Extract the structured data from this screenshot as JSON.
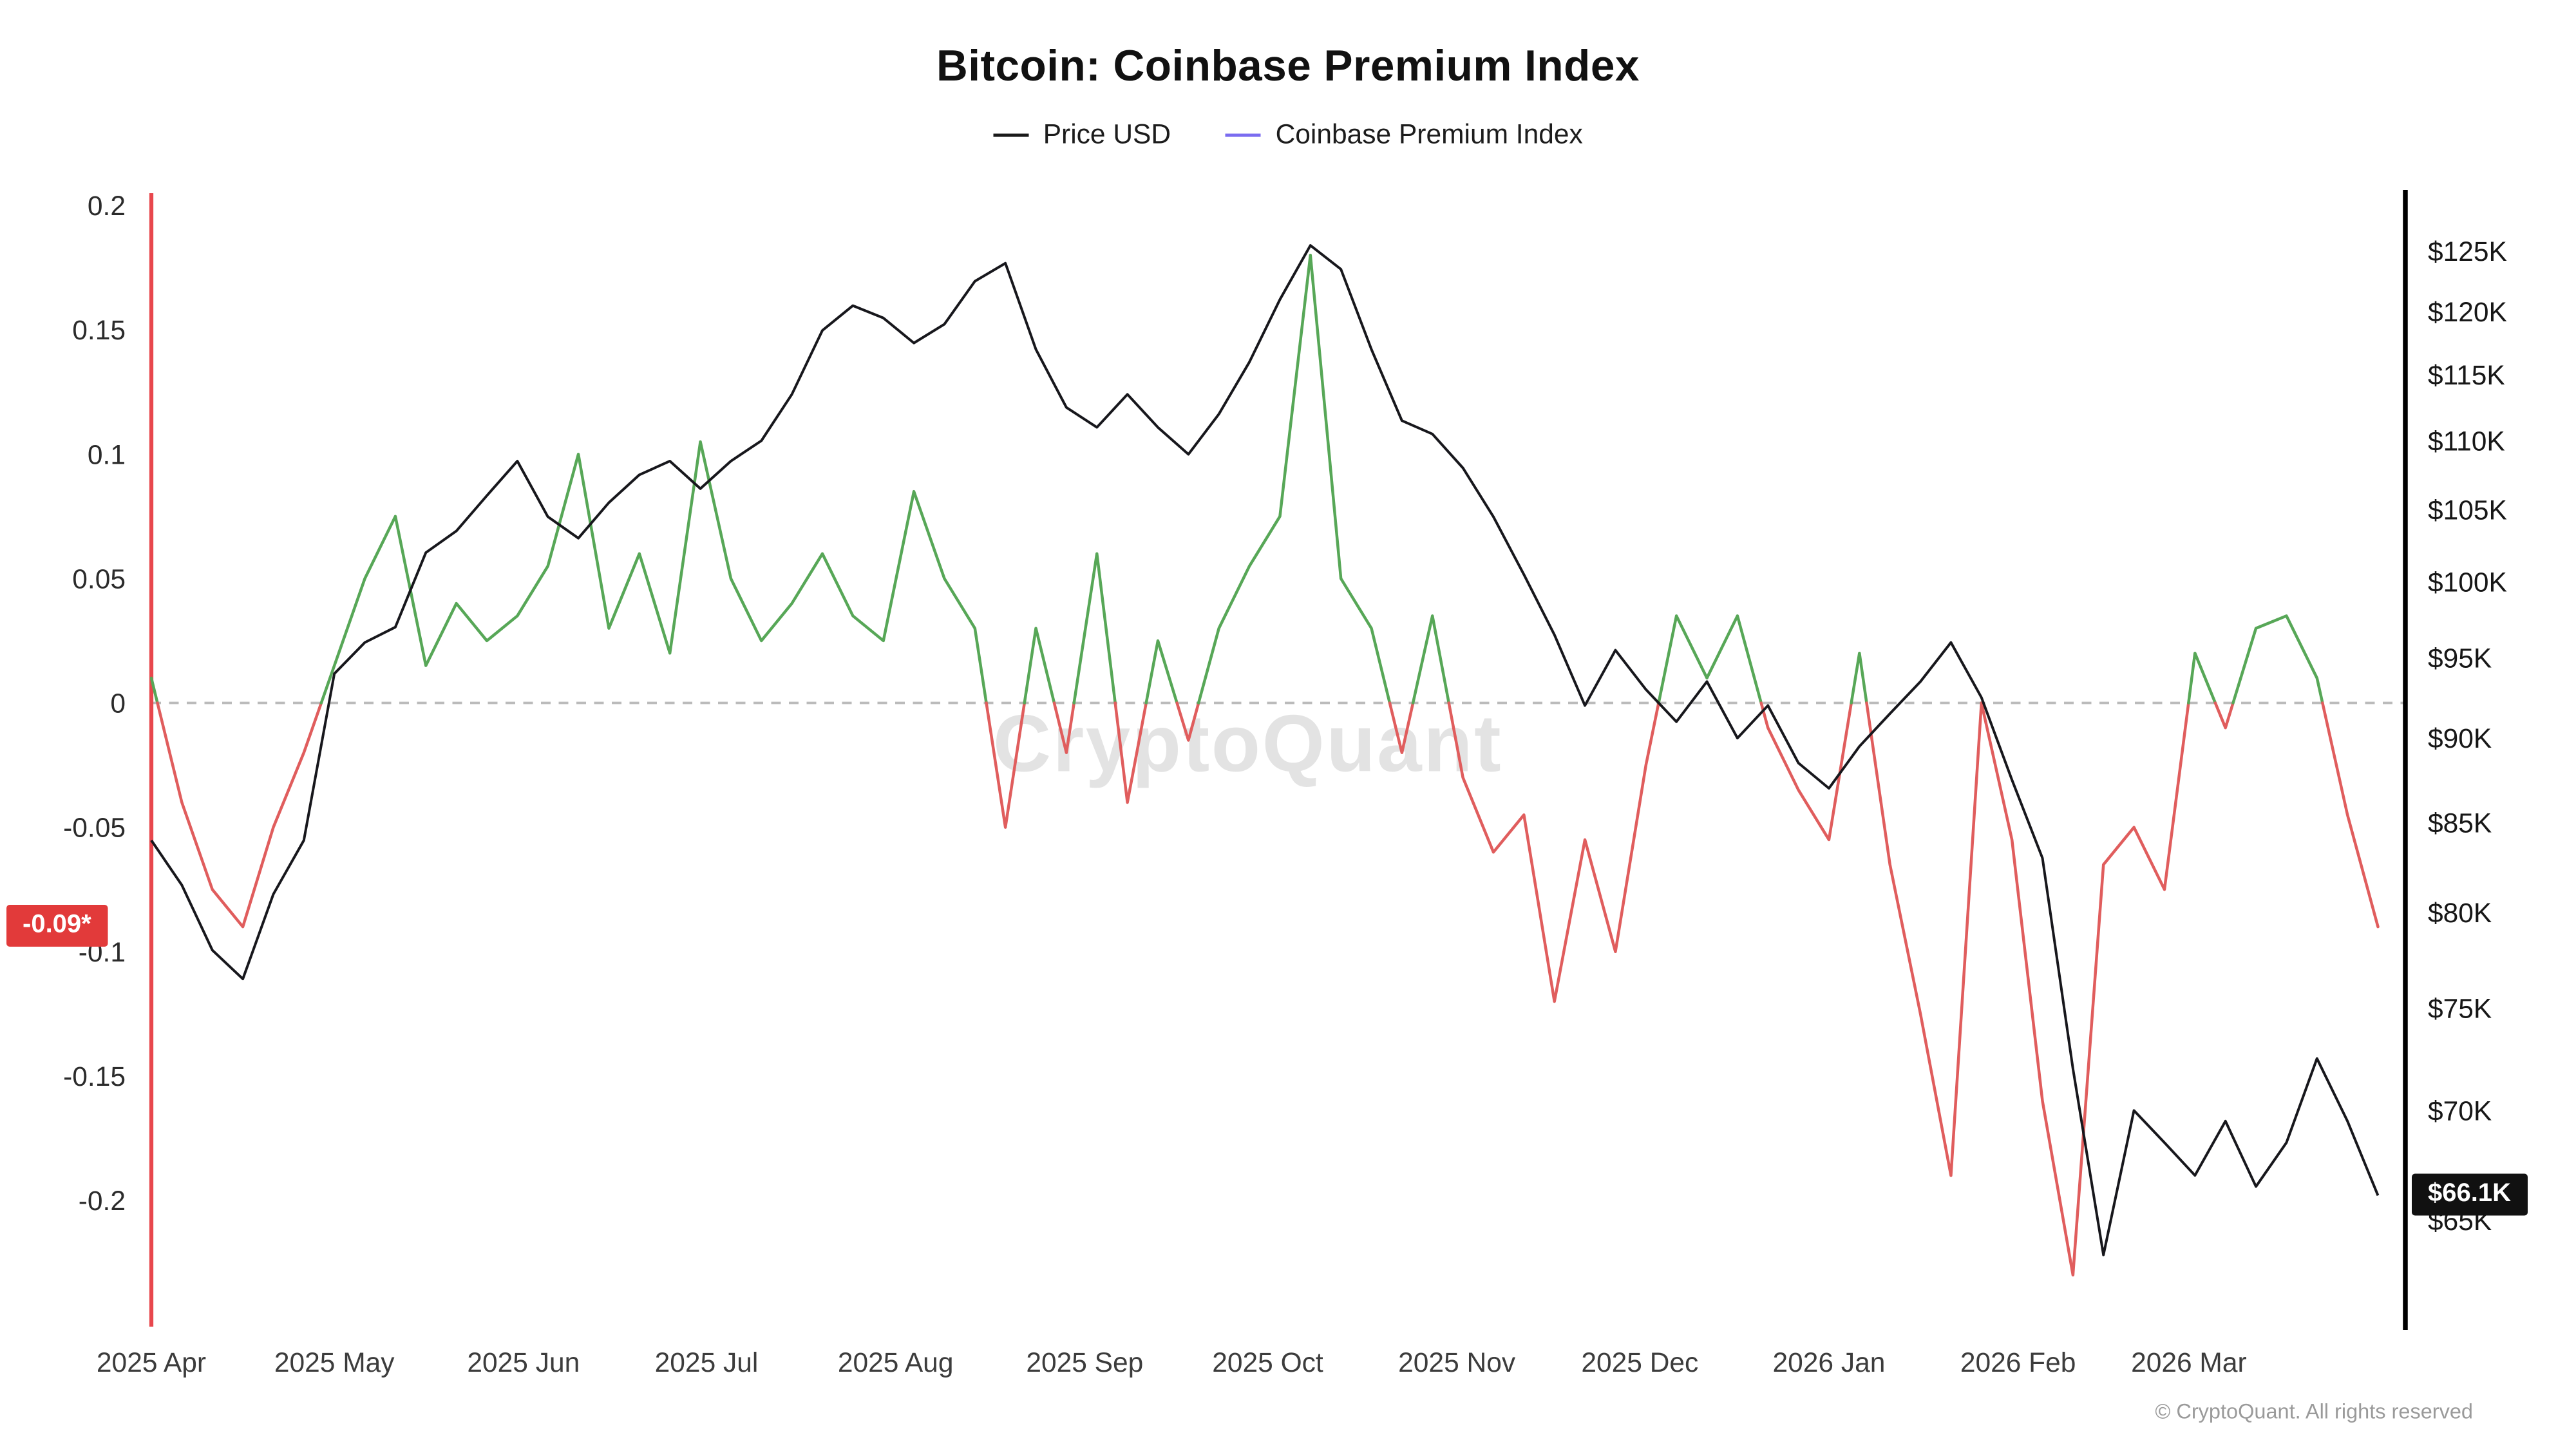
{
  "page": {
    "title": "Bitcoin: Coinbase Premium Index",
    "watermark": "CryptoQuant",
    "footer": "© CryptoQuant. All rights reserved"
  },
  "legend": [
    {
      "label": "Price USD",
      "color": "#1a1a1a"
    },
    {
      "label": "Coinbase Premium Index",
      "color": "#7b6cf0"
    }
  ],
  "badges": {
    "premium_current": {
      "text": "-0.09*",
      "value": -0.09,
      "bg": "#e23a3a",
      "fg": "#ffffff"
    },
    "price_current": {
      "text": "$66.1K",
      "value": 66.1,
      "bg": "#111111",
      "fg": "#ffffff"
    }
  },
  "chart_data": {
    "type": "line",
    "title": "Bitcoin: Coinbase Premium Index",
    "x_unit": "days since 2025-04-01",
    "x_ticks": [
      {
        "label": "2025 Apr",
        "day": 0
      },
      {
        "label": "2025 May",
        "day": 30
      },
      {
        "label": "2025 Jun",
        "day": 61
      },
      {
        "label": "2025 Jul",
        "day": 91
      },
      {
        "label": "2025 Aug",
        "day": 122
      },
      {
        "label": "2025 Sep",
        "day": 153
      },
      {
        "label": "2025 Oct",
        "day": 183
      },
      {
        "label": "2025 Nov",
        "day": 214
      },
      {
        "label": "2025 Dec",
        "day": 244
      },
      {
        "label": "2026 Jan",
        "day": 275
      },
      {
        "label": "2026 Feb",
        "day": 306
      },
      {
        "label": "2026 Mar",
        "day": 334
      }
    ],
    "left_axis": {
      "title": "Coinbase Premium Index",
      "range": [
        -0.25,
        0.2
      ],
      "zero_line_dashed": true,
      "ticks": [
        {
          "label": "0.2",
          "value": 0.2
        },
        {
          "label": "0.15",
          "value": 0.15
        },
        {
          "label": "0.1",
          "value": 0.1
        },
        {
          "label": "0.05",
          "value": 0.05
        },
        {
          "label": "0",
          "value": 0
        },
        {
          "label": "-0.05",
          "value": -0.05
        },
        {
          "label": "-0.1",
          "value": -0.1
        },
        {
          "label": "-0.15",
          "value": -0.15
        },
        {
          "label": "-0.2",
          "value": -0.2
        }
      ]
    },
    "right_axis": {
      "title": "Price USD",
      "scale": "log",
      "range_k": [
        60.5,
        130
      ],
      "ticks": [
        {
          "label": "$125K",
          "value": 125
        },
        {
          "label": "$120K",
          "value": 120
        },
        {
          "label": "$115K",
          "value": 115
        },
        {
          "label": "$110K",
          "value": 110
        },
        {
          "label": "$105K",
          "value": 105
        },
        {
          "label": "$100K",
          "value": 100
        },
        {
          "label": "$95K",
          "value": 95
        },
        {
          "label": "$90K",
          "value": 90
        },
        {
          "label": "$85K",
          "value": 85
        },
        {
          "label": "$80K",
          "value": 80
        },
        {
          "label": "$75K",
          "value": 75
        },
        {
          "label": "$70K",
          "value": 70
        },
        {
          "label": "$65K",
          "value": 65
        }
      ]
    },
    "series": [
      {
        "name": "Price USD",
        "axis": "right",
        "color": "#17171c",
        "points": [
          [
            0,
            84
          ],
          [
            5,
            81.5
          ],
          [
            10,
            78
          ],
          [
            15,
            76.5
          ],
          [
            20,
            81
          ],
          [
            25,
            84
          ],
          [
            30,
            94
          ],
          [
            35,
            96
          ],
          [
            40,
            97
          ],
          [
            45,
            102
          ],
          [
            50,
            103.5
          ],
          [
            55,
            106
          ],
          [
            60,
            108.5
          ],
          [
            65,
            104.5
          ],
          [
            70,
            103
          ],
          [
            75,
            105.5
          ],
          [
            80,
            107.5
          ],
          [
            85,
            108.5
          ],
          [
            90,
            106.5
          ],
          [
            95,
            108.5
          ],
          [
            100,
            110
          ],
          [
            105,
            113.5
          ],
          [
            110,
            118.5
          ],
          [
            115,
            120.5
          ],
          [
            120,
            119.5
          ],
          [
            125,
            117.5
          ],
          [
            130,
            119
          ],
          [
            135,
            122.5
          ],
          [
            140,
            124
          ],
          [
            145,
            117
          ],
          [
            150,
            112.5
          ],
          [
            155,
            111
          ],
          [
            160,
            113.5
          ],
          [
            165,
            111
          ],
          [
            170,
            109
          ],
          [
            175,
            112
          ],
          [
            180,
            116
          ],
          [
            185,
            121
          ],
          [
            190,
            125.5
          ],
          [
            195,
            123.5
          ],
          [
            200,
            117
          ],
          [
            205,
            111.5
          ],
          [
            210,
            110.5
          ],
          [
            215,
            108
          ],
          [
            220,
            104.5
          ],
          [
            225,
            100.5
          ],
          [
            230,
            96.5
          ],
          [
            235,
            92
          ],
          [
            240,
            95.5
          ],
          [
            245,
            93
          ],
          [
            250,
            91
          ],
          [
            255,
            93.5
          ],
          [
            260,
            90
          ],
          [
            265,
            92
          ],
          [
            270,
            88.5
          ],
          [
            275,
            87
          ],
          [
            280,
            89.5
          ],
          [
            285,
            91.5
          ],
          [
            290,
            93.5
          ],
          [
            295,
            96
          ],
          [
            300,
            92.5
          ],
          [
            305,
            87.5
          ],
          [
            310,
            83
          ],
          [
            315,
            72
          ],
          [
            320,
            63.5
          ],
          [
            325,
            70
          ],
          [
            330,
            68.5
          ],
          [
            335,
            67
          ],
          [
            340,
            69.5
          ],
          [
            345,
            66.5
          ],
          [
            350,
            68.5
          ],
          [
            355,
            72.5
          ],
          [
            360,
            69.5
          ],
          [
            365,
            66.1
          ]
        ]
      },
      {
        "name": "Coinbase Premium Index",
        "axis": "left",
        "color_positive": "#57a757",
        "color_negative": "#e05d5d",
        "points": [
          [
            0,
            0.01
          ],
          [
            5,
            -0.04
          ],
          [
            10,
            -0.075
          ],
          [
            15,
            -0.09
          ],
          [
            20,
            -0.05
          ],
          [
            25,
            -0.02
          ],
          [
            30,
            0.015
          ],
          [
            35,
            0.05
          ],
          [
            40,
            0.075
          ],
          [
            45,
            0.015
          ],
          [
            50,
            0.04
          ],
          [
            55,
            0.025
          ],
          [
            60,
            0.035
          ],
          [
            65,
            0.055
          ],
          [
            70,
            0.1
          ],
          [
            75,
            0.03
          ],
          [
            80,
            0.06
          ],
          [
            85,
            0.02
          ],
          [
            90,
            0.105
          ],
          [
            95,
            0.05
          ],
          [
            100,
            0.025
          ],
          [
            105,
            0.04
          ],
          [
            110,
            0.06
          ],
          [
            115,
            0.035
          ],
          [
            120,
            0.025
          ],
          [
            125,
            0.085
          ],
          [
            130,
            0.05
          ],
          [
            135,
            0.03
          ],
          [
            140,
            -0.05
          ],
          [
            145,
            0.03
          ],
          [
            150,
            -0.02
          ],
          [
            155,
            0.06
          ],
          [
            160,
            -0.04
          ],
          [
            165,
            0.025
          ],
          [
            170,
            -0.015
          ],
          [
            175,
            0.03
          ],
          [
            180,
            0.055
          ],
          [
            185,
            0.075
          ],
          [
            190,
            0.18
          ],
          [
            195,
            0.05
          ],
          [
            200,
            0.03
          ],
          [
            205,
            -0.02
          ],
          [
            210,
            0.035
          ],
          [
            215,
            -0.03
          ],
          [
            220,
            -0.06
          ],
          [
            225,
            -0.045
          ],
          [
            230,
            -0.12
          ],
          [
            235,
            -0.055
          ],
          [
            240,
            -0.1
          ],
          [
            245,
            -0.025
          ],
          [
            250,
            0.035
          ],
          [
            255,
            0.01
          ],
          [
            260,
            0.035
          ],
          [
            265,
            -0.01
          ],
          [
            270,
            -0.035
          ],
          [
            275,
            -0.055
          ],
          [
            280,
            0.02
          ],
          [
            285,
            -0.065
          ],
          [
            290,
            -0.125
          ],
          [
            295,
            -0.19
          ],
          [
            300,
            0
          ],
          [
            305,
            -0.055
          ],
          [
            310,
            -0.16
          ],
          [
            315,
            -0.23
          ],
          [
            320,
            -0.065
          ],
          [
            325,
            -0.05
          ],
          [
            330,
            -0.075
          ],
          [
            335,
            0.02
          ],
          [
            340,
            -0.01
          ],
          [
            345,
            0.03
          ],
          [
            350,
            0.035
          ],
          [
            355,
            0.01
          ],
          [
            360,
            -0.045
          ],
          [
            365,
            -0.09
          ]
        ]
      }
    ],
    "annotations": {
      "start_marker_line_color": "#e8474d",
      "zero_line_color": "#bbbbbb"
    }
  }
}
